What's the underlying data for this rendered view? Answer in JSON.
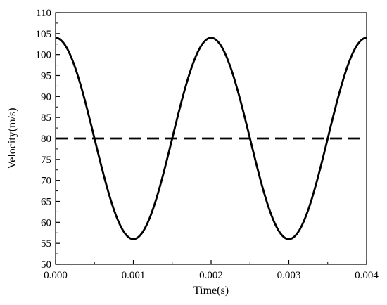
{
  "chart_data": {
    "type": "line",
    "title": "",
    "xlabel": "Time(s)",
    "ylabel": "Velocity(m/s)",
    "xlim": [
      0.0,
      0.004
    ],
    "ylim": [
      50,
      110
    ],
    "x_ticks": [
      "0.000",
      "0.001",
      "0.002",
      "0.003",
      "0.004"
    ],
    "y_ticks": [
      "50",
      "55",
      "60",
      "65",
      "70",
      "75",
      "80",
      "85",
      "90",
      "95",
      "100",
      "105",
      "110"
    ],
    "grid": false,
    "legend": "none",
    "series": [
      {
        "style": "solid",
        "color": "#000000",
        "x": [
          0.0,
          0.00025,
          0.0005,
          0.00075,
          0.001,
          0.00125,
          0.0015,
          0.00175,
          0.002,
          0.00225,
          0.0025,
          0.00275,
          0.003,
          0.00325,
          0.0035,
          0.00375,
          0.004
        ],
        "y": [
          104,
          97,
          80,
          63,
          56,
          63,
          80,
          97,
          104,
          97,
          80,
          63,
          56,
          63,
          80,
          97,
          104
        ]
      },
      {
        "style": "dashed",
        "color": "#000000",
        "x": [
          0.0,
          0.004
        ],
        "y": [
          80,
          80
        ]
      }
    ]
  }
}
